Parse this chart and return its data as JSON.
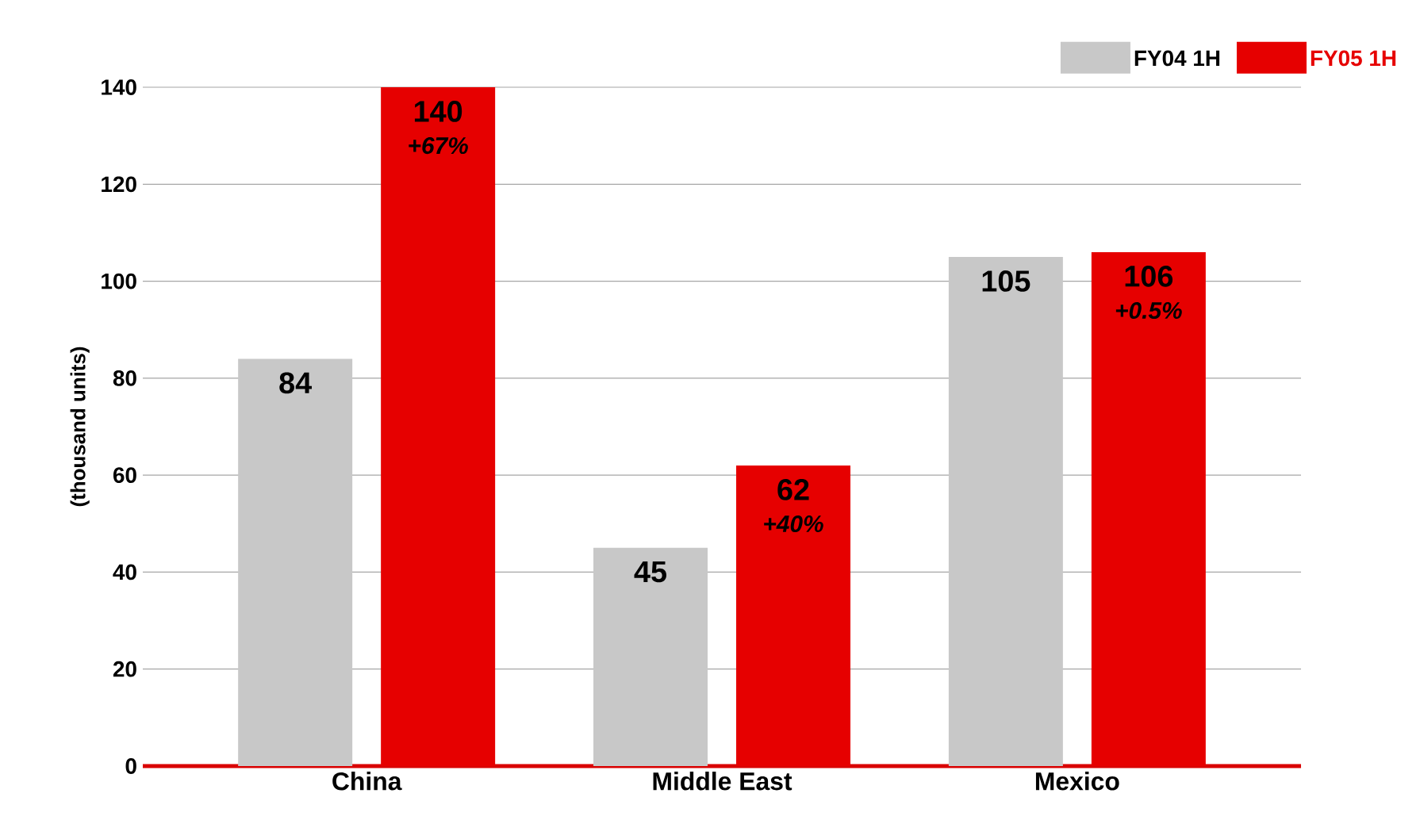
{
  "chart_data": {
    "type": "bar",
    "ylabel": "(thousand units)",
    "categories": [
      "China",
      "Middle East",
      "Mexico"
    ],
    "series": [
      {
        "name": "FY04 1H",
        "color": "#c8c8c8",
        "values": [
          84,
          45,
          105
        ]
      },
      {
        "name": "FY05 1H",
        "color": "#e60000",
        "values": [
          140,
          62,
          106
        ]
      }
    ],
    "ylim": [
      0,
      140
    ],
    "yticks": [
      0,
      20,
      40,
      60,
      80,
      100,
      120,
      140
    ],
    "grid": "y",
    "legend": "top right",
    "data_labels": true,
    "annotations": [
      "+67%",
      "+40%",
      "+0.5%"
    ]
  }
}
